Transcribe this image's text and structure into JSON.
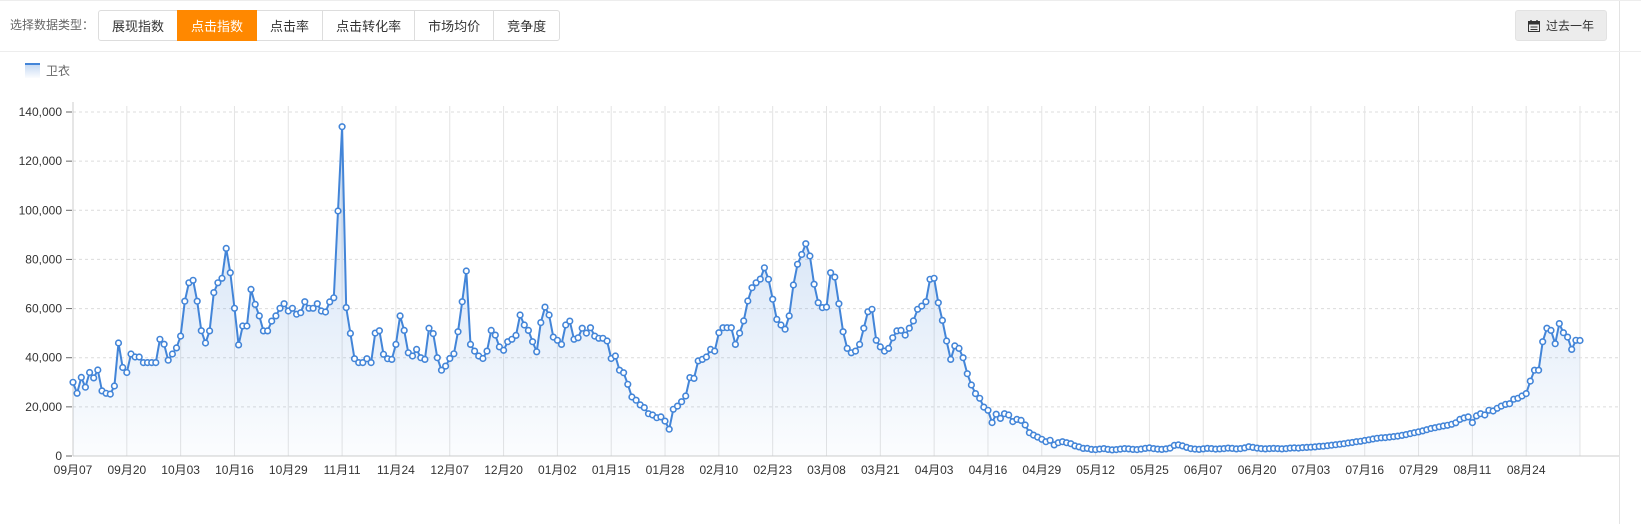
{
  "toolbar": {
    "label": "选择数据类型：",
    "active_color": "#ff8800",
    "tabs": [
      {
        "id": "impression-index",
        "label": "展现指数",
        "active": false
      },
      {
        "id": "click-index",
        "label": "点击指数",
        "active": true
      },
      {
        "id": "click-rate",
        "label": "点击率",
        "active": false
      },
      {
        "id": "click-conversion-rate",
        "label": "点击转化率",
        "active": false
      },
      {
        "id": "market-avg-price",
        "label": "市场均价",
        "active": false
      },
      {
        "id": "competition",
        "label": "竞争度",
        "active": false
      }
    ]
  },
  "date_range": {
    "label": "过去一年"
  },
  "legend": [
    {
      "id": "hoodie",
      "label": "卫衣"
    }
  ],
  "chart_data": {
    "type": "area",
    "title": "",
    "xlabel": "",
    "ylabel": "",
    "series_name": "卫衣",
    "legend_position": "top-left",
    "grid": true,
    "ylim": [
      0,
      140000
    ],
    "y_tick_step": 20000,
    "x_label_interval_days": 13,
    "x_labels": [
      "09月07",
      "09月20",
      "10月03",
      "10月16",
      "10月29",
      "11月11",
      "11月24",
      "12月07",
      "12月20",
      "01月02",
      "01月15",
      "01月28",
      "02月10",
      "02月23",
      "03月08",
      "03月21",
      "04月03",
      "04月16",
      "04月29",
      "05月12",
      "05月25",
      "06月07",
      "06月20",
      "07月03",
      "07月16",
      "07月29",
      "08月11",
      "08月24"
    ],
    "colors": {
      "line": "#4385d8",
      "marker_fill": "#ffffff",
      "area_top": "rgba(67,133,216,0.30)",
      "area_bottom": "rgba(67,133,216,0.02)",
      "grid_vertical": "#e4e4e4",
      "grid_horizontal": "#dcdcdc",
      "axis": "#cccccc",
      "tick": "#666666",
      "label": "#333333"
    },
    "values": [
      30000,
      25500,
      32000,
      28000,
      34000,
      31800,
      35000,
      26500,
      25500,
      25200,
      28500,
      46000,
      36000,
      34000,
      41500,
      40300,
      40300,
      38000,
      38000,
      38000,
      38000,
      47500,
      45500,
      39000,
      41500,
      44000,
      48800,
      63000,
      70500,
      71500,
      63000,
      51000,
      46000,
      50900,
      66500,
      70500,
      72300,
      84500,
      74600,
      60100,
      45200,
      52900,
      52900,
      67800,
      61700,
      57000,
      50900,
      50900,
      54900,
      57000,
      60100,
      62000,
      59000,
      60100,
      57700,
      58300,
      62800,
      60100,
      60100,
      62000,
      59000,
      58600,
      62700,
      64400,
      99700,
      134000,
      60400,
      49900,
      39600,
      38000,
      38000,
      39600,
      38000,
      50000,
      51000,
      41400,
      39600,
      39300,
      45400,
      57000,
      51100,
      42000,
      40700,
      43400,
      40000,
      39300,
      52000,
      49800,
      40000,
      34900,
      36600,
      39700,
      41600,
      50600,
      62800,
      75300,
      45400,
      42700,
      40700,
      39700,
      42700,
      51100,
      49200,
      44400,
      43000,
      46500,
      47500,
      49100,
      57400,
      53300,
      51100,
      46500,
      42400,
      54300,
      60600,
      57400,
      48400,
      47100,
      45400,
      53300,
      54900,
      47500,
      48100,
      52000,
      50000,
      52200,
      48800,
      47900,
      47900,
      46800,
      39700,
      40700,
      34900,
      33900,
      29200,
      24000,
      22700,
      20800,
      19700,
      17200,
      16700,
      15600,
      15900,
      14200,
      10900,
      19000,
      20300,
      22100,
      24400,
      31900,
      31600,
      38700,
      39300,
      40300,
      43400,
      42700,
      50200,
      52200,
      52200,
      52200,
      45400,
      50000,
      55000,
      63100,
      68500,
      70500,
      72000,
      76600,
      71900,
      63800,
      55600,
      53300,
      51600,
      57000,
      69600,
      78000,
      82000,
      86400,
      81400,
      69900,
      62400,
      60400,
      60600,
      74600,
      72800,
      62000,
      50600,
      43800,
      42000,
      42700,
      45400,
      52000,
      58700,
      59700,
      47100,
      44400,
      42700,
      43800,
      48100,
      50900,
      51100,
      49200,
      52000,
      55000,
      59700,
      61000,
      62800,
      71900,
      72300,
      62400,
      55200,
      46800,
      39300,
      44800,
      43800,
      40000,
      33500,
      28900,
      25400,
      23500,
      19900,
      18600,
      13600,
      17000,
      15300,
      17200,
      16700,
      14000,
      14900,
      14500,
      12600,
      9500,
      8500,
      7700,
      6800,
      5800,
      6400,
      4500,
      5400,
      5800,
      5400,
      5000,
      4100,
      3700,
      3100,
      3100,
      2700,
      2600,
      2800,
      3000,
      2700,
      2500,
      2600,
      2800,
      3000,
      2900,
      2700,
      2600,
      2800,
      3100,
      3300,
      3000,
      2800,
      2700,
      2900,
      3200,
      4300,
      4500,
      4100,
      3500,
      3000,
      2800,
      2700,
      2900,
      3100,
      3000,
      2800,
      2900,
      3000,
      3200,
      3100,
      2900,
      3000,
      3300,
      3800,
      3500,
      3200,
      3000,
      2900,
      3000,
      3100,
      3000,
      2900,
      3000,
      3200,
      3300,
      3200,
      3400,
      3500,
      3600,
      3700,
      3900,
      4000,
      4200,
      4400,
      4600,
      4800,
      5000,
      5300,
      5500,
      5800,
      6000,
      6300,
      6600,
      6900,
      7200,
      7400,
      7500,
      7700,
      7900,
      8100,
      8400,
      8700,
      9100,
      9500,
      9800,
      10200,
      10700,
      11200,
      11500,
      11900,
      12200,
      12500,
      12900,
      13500,
      14900,
      15500,
      15900,
      13600,
      16300,
      17200,
      16700,
      18600,
      18300,
      19400,
      20300,
      21000,
      21300,
      23100,
      23500,
      24400,
      25400,
      30500,
      34900,
      34900,
      46500,
      52000,
      51100,
      45700,
      53900,
      50200,
      48400,
      43400,
      47100,
      47000
    ]
  }
}
